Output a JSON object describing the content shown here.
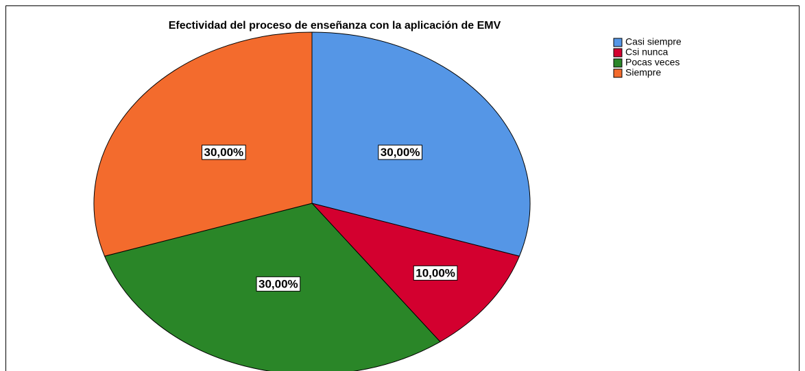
{
  "chart_data": {
    "type": "pie",
    "title": "Efectividad del proceso de enseñanza con la aplicación de EMV",
    "categories": [
      "Casi siempre",
      "Csi nunca",
      "Pocas veces",
      "Siempre"
    ],
    "values": [
      30,
      10,
      30,
      30
    ],
    "value_labels": [
      "30,00%",
      "10,00%",
      "30,00%",
      "30,00%"
    ],
    "colors": [
      "#5596e6",
      "#d3002f",
      "#2a8628",
      "#f36b2d"
    ],
    "legend": "top-right"
  }
}
